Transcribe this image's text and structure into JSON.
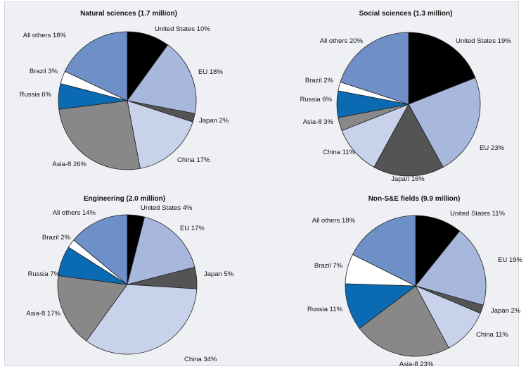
{
  "colors": {
    "United States": "#000000",
    "EU": "#a8b8dc",
    "Japan": "#545454",
    "China": "#c8d2ea",
    "Asia-8": "#888888",
    "Russia": "#0a6ab2",
    "Brazil": "#ffffff",
    "All others": "#6f8fc8"
  },
  "chart_data": [
    {
      "type": "pie",
      "title": "Natural sciences (1.7 million)",
      "labels": [
        "United States",
        "EU",
        "Japan",
        "China",
        "Asia-8",
        "Russia",
        "Brazil",
        "All others"
      ],
      "values": [
        10,
        18,
        2,
        17,
        26,
        6,
        3,
        18
      ],
      "slice_labels": [
        "United States 10%",
        "EU 18%",
        "Japan 2%",
        "China 17%",
        "Asia-8 26%",
        "Russia 6%",
        "Brazil 3%",
        "All others 18%"
      ]
    },
    {
      "type": "pie",
      "title": "Social sciences (1.3 million)",
      "labels": [
        "United States",
        "EU",
        "Japan",
        "China",
        "Asia-8",
        "Russia",
        "Brazil",
        "All others"
      ],
      "values": [
        19,
        23,
        16,
        11,
        3,
        6,
        2,
        20
      ],
      "slice_labels": [
        "United States 19%",
        "EU 23%",
        "Japan 16%",
        "China 11%",
        "Asia-8 3%",
        "Russia 6%",
        "Brazil 2%",
        "All others 20%"
      ]
    },
    {
      "type": "pie",
      "title": "Engineering (2.0 million)",
      "labels": [
        "United States",
        "EU",
        "Japan",
        "China",
        "Asia-8",
        "Russia",
        "Brazil",
        "All others"
      ],
      "values": [
        4,
        17,
        5,
        34,
        17,
        7,
        2,
        14
      ],
      "slice_labels": [
        "United States 4%",
        "EU 17%",
        "Japan 5%",
        "China 34%",
        "Asia-8 17%",
        "Russia 7%",
        "Brazil 2%",
        "All others 14%"
      ]
    },
    {
      "type": "pie",
      "title": "Non-S&E fields (9.9 million)",
      "labels": [
        "United States",
        "EU",
        "Japan",
        "China",
        "Asia-8",
        "Russia",
        "Brazil",
        "All others"
      ],
      "values": [
        11,
        19,
        2,
        11,
        23,
        11,
        7,
        18
      ],
      "slice_labels": [
        "United States 11%",
        "EU 19%",
        "Japan 2%",
        "China 11%",
        "Asia-8 23%",
        "Russia 11%",
        "Brazil 7%",
        "All others 18%"
      ]
    }
  ]
}
